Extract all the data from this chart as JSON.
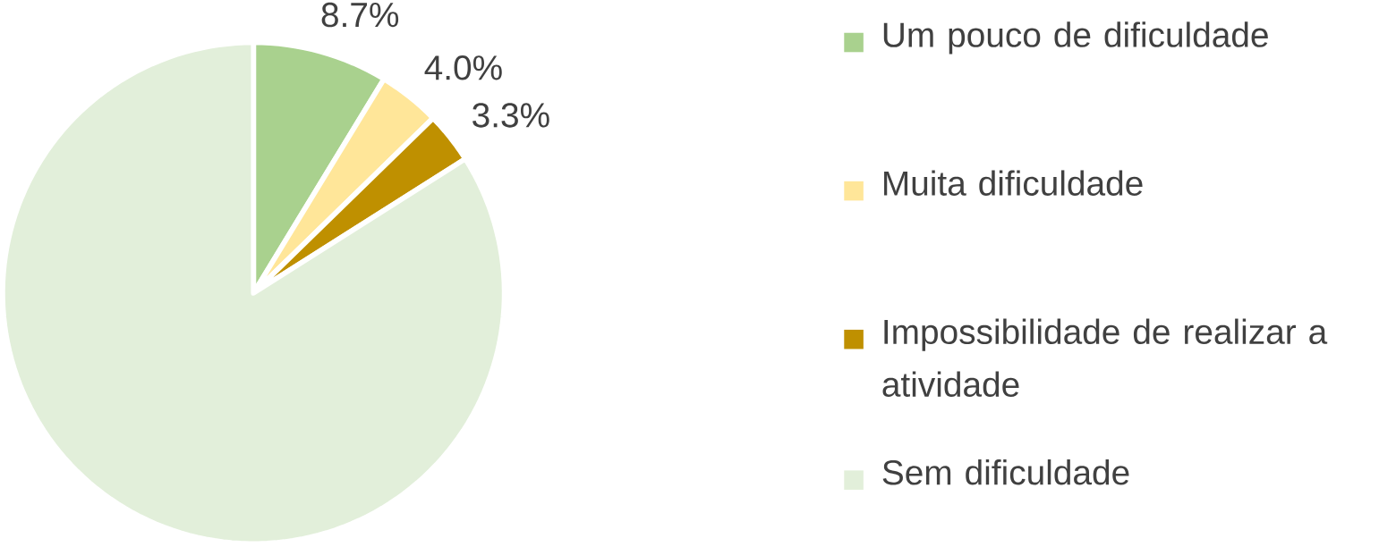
{
  "chart_data": {
    "type": "pie",
    "categories": [
      "Um pouco de dificuldade",
      "Muita dificuldade",
      "Impossibilidade de realizar a atividade",
      "Sem dificuldade"
    ],
    "values": [
      8.7,
      4.0,
      3.3,
      84.0
    ],
    "colors": [
      "#a9d18e",
      "#ffe699",
      "#bf9000",
      "#e2efda"
    ],
    "value_labels": [
      "8.7%",
      "4.0%",
      "3.3%",
      null
    ],
    "legend": "right"
  }
}
